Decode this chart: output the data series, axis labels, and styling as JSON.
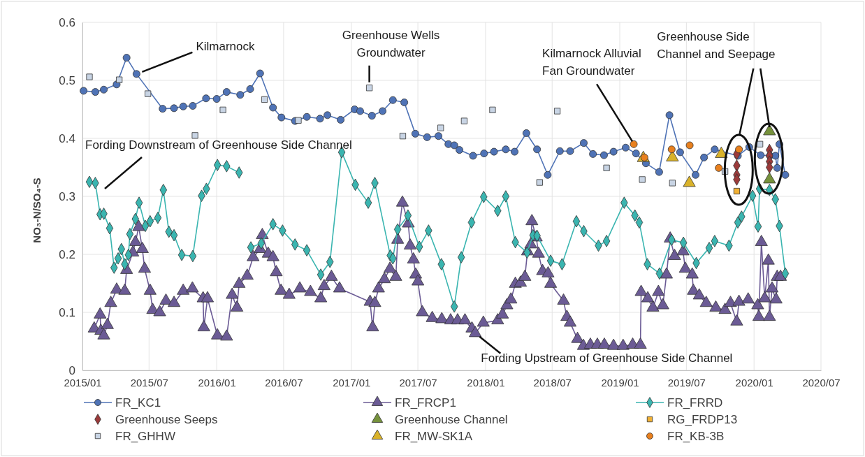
{
  "chart_data": {
    "type": "line",
    "ylabel": "NO₃-N/SO₄-S",
    "xlim": [
      "2015-01-01",
      "2020-07-01"
    ],
    "xticks": [
      {
        "value": "2015-01-01",
        "label": "2015/01"
      },
      {
        "value": "2015-07-01",
        "label": "2015/07"
      },
      {
        "value": "2016-01-01",
        "label": "2016/01"
      },
      {
        "value": "2016-07-01",
        "label": "2016/07"
      },
      {
        "value": "2017-01-01",
        "label": "2017/01"
      },
      {
        "value": "2017-07-01",
        "label": "2017/07"
      },
      {
        "value": "2018-01-01",
        "label": "2018/01"
      },
      {
        "value": "2018-07-01",
        "label": "2018/07"
      },
      {
        "value": "2019-01-01",
        "label": "2019/01"
      },
      {
        "value": "2019-07-01",
        "label": "2019/07"
      },
      {
        "value": "2020-01-01",
        "label": "2020/01"
      },
      {
        "value": "2020-07-01",
        "label": "2020/07"
      }
    ],
    "ylim": [
      0,
      0.6
    ],
    "yticks": [
      0,
      0.1,
      0.2,
      0.3,
      0.4,
      0.5,
      0.6
    ],
    "grid": true,
    "legend": "bottom",
    "annotations": [
      {
        "text": "Kilmarnock",
        "x": "2015-05-28",
        "y": 0.511
      },
      {
        "text": "Greenhouse Wells\nGroundwater",
        "x": "2017-02-19",
        "y": 0.487
      },
      {
        "text": "Kilmarnock Alluvial\nFan Groundwater",
        "x": "2019-02-08",
        "y": 0.39
      },
      {
        "text": "Greenhouse Side\nChannel and Seepage",
        "x": "2020-02-12",
        "y": 0.412
      },
      "Fording Downstream of Greenhouse Side Channel",
      {
        "text": "Fording Upstream of Greenhouse Side Channel",
        "x": "2017-12-10",
        "y": 0.063
      }
    ],
    "series": [
      {
        "name": "FR_KC1",
        "marker": "circle",
        "color": "#4f73b6",
        "x": [
          "2015-01-04",
          "2015-02-05",
          "2015-02-28",
          "2015-04-04",
          "2015-05-01",
          "2015-05-28",
          "2015-08-07",
          "2015-09-07",
          "2015-10-02",
          "2015-10-28",
          "2015-12-03",
          "2016-01-01",
          "2016-01-28",
          "2016-03-05",
          "2016-04-01",
          "2016-04-28",
          "2016-06-02",
          "2016-06-25",
          "2016-08-01",
          "2016-09-02",
          "2016-10-08",
          "2016-10-28",
          "2016-12-03",
          "2017-01-10",
          "2017-01-25",
          "2017-02-26",
          "2017-03-27",
          "2017-04-24",
          "2017-05-25",
          "2017-06-24",
          "2017-07-26",
          "2017-08-26",
          "2017-09-22",
          "2017-10-08",
          "2017-10-22",
          "2017-11-28",
          "2017-12-28",
          "2018-01-24",
          "2018-02-25",
          "2018-03-21",
          "2018-04-22",
          "2018-05-21",
          "2018-06-19",
          "2018-07-22",
          "2018-08-19",
          "2018-09-25",
          "2018-10-20",
          "2018-11-19",
          "2018-12-15",
          "2019-01-17",
          "2019-02-14",
          "2019-03-13",
          "2019-04-18",
          "2019-05-16",
          "2019-06-14",
          "2019-07-26",
          "2019-08-18",
          "2019-09-16",
          "2019-11-18",
          "2019-12-19",
          "2020-01-19",
          "2020-02-13",
          "2020-02-28",
          "2020-03-04",
          "2020-03-10",
          "2020-03-26"
        ],
        "values": [
          0.482,
          0.48,
          0.484,
          0.493,
          0.539,
          0.511,
          0.451,
          0.452,
          0.455,
          0.456,
          0.469,
          0.468,
          0.48,
          0.475,
          0.485,
          0.512,
          0.453,
          0.436,
          0.43,
          0.437,
          0.434,
          0.44,
          0.432,
          0.45,
          0.447,
          0.439,
          0.447,
          0.466,
          0.462,
          0.408,
          0.402,
          0.404,
          0.39,
          0.388,
          0.38,
          0.37,
          0.374,
          0.377,
          0.381,
          0.377,
          0.409,
          0.381,
          0.337,
          0.378,
          0.378,
          0.392,
          0.373,
          0.371,
          0.377,
          0.384,
          0.374,
          0.357,
          0.342,
          0.44,
          0.376,
          0.337,
          0.367,
          0.381,
          0.37,
          0.385,
          0.371,
          0.37,
          0.37,
          0.349,
          0.39,
          0.337
        ]
      },
      {
        "name": "FR_FRCP1",
        "marker": "triangle",
        "color": "#6b5b95",
        "x": [
          "2015-02-02",
          "2015-02-18",
          "2015-02-20",
          "2015-02-28",
          "2015-03-10",
          "2015-03-19",
          "2015-04-04",
          "2015-04-26",
          "2015-05-01",
          "2015-05-18",
          "2015-05-25",
          "2015-06-03",
          "2015-06-13",
          "2015-06-19",
          "2015-07-04",
          "2015-07-11",
          "2015-07-30",
          "2015-08-16",
          "2015-09-07",
          "2015-10-02",
          "2015-10-27",
          "2015-11-25",
          "2015-11-27",
          "2015-12-07",
          "2016-01-03",
          "2016-01-28",
          "2016-02-12",
          "2016-02-25",
          "2016-03-02",
          "2016-03-24",
          "2016-04-09",
          "2016-04-28",
          "2016-05-04",
          "2016-05-20",
          "2016-06-02",
          "2016-06-11",
          "2016-06-24",
          "2016-07-16",
          "2016-08-14",
          "2016-09-12",
          "2016-10-10",
          "2016-10-19",
          "2016-11-08",
          "2016-11-30",
          "2017-02-21",
          "2017-02-28",
          "2017-03-06",
          "2017-03-16",
          "2017-04-01",
          "2017-04-16",
          "2017-05-02",
          "2017-05-07",
          "2017-05-20",
          "2017-06-05",
          "2017-06-10",
          "2017-06-19",
          "2017-06-25",
          "2017-07-01",
          "2017-07-13",
          "2017-08-09",
          "2017-09-04",
          "2017-09-28",
          "2017-10-17",
          "2017-11-06",
          "2017-11-25",
          "2017-12-04",
          "2017-12-26",
          "2018-02-03",
          "2018-02-16",
          "2018-02-28",
          "2018-03-11",
          "2018-03-23",
          "2018-04-06",
          "2018-04-18",
          "2018-04-25",
          "2018-05-04",
          "2018-05-07",
          "2018-05-19",
          "2018-05-25",
          "2018-06-05",
          "2018-06-20",
          "2018-06-27",
          "2018-08-01",
          "2018-08-10",
          "2018-08-19",
          "2018-09-08",
          "2018-09-24",
          "2018-10-13",
          "2018-11-01",
          "2018-11-20",
          "2018-12-15",
          "2019-01-10",
          "2019-02-05",
          "2019-02-26",
          "2019-02-28",
          "2019-03-18",
          "2019-04-01",
          "2019-04-16",
          "2019-04-28",
          "2019-05-08",
          "2019-05-18",
          "2019-05-30",
          "2019-06-22",
          "2019-06-28",
          "2019-07-17",
          "2019-07-20",
          "2019-08-05",
          "2019-08-24",
          "2019-09-19",
          "2019-10-14",
          "2019-10-29",
          "2019-11-15",
          "2019-11-21",
          "2019-12-16",
          "2020-01-11",
          "2020-01-14",
          "2020-01-21",
          "2020-01-30",
          "2020-02-09",
          "2020-02-12",
          "2020-02-19",
          "2020-03-01",
          "2020-03-04",
          "2020-03-13"
        ],
        "values": [
          0.072,
          0.096,
          0.068,
          0.06,
          0.078,
          0.116,
          0.139,
          0.137,
          0.173,
          0.203,
          0.221,
          0.247,
          0.209,
          0.175,
          0.137,
          0.104,
          0.1,
          0.12,
          0.116,
          0.137,
          0.141,
          0.124,
          0.074,
          0.124,
          0.06,
          0.058,
          0.13,
          0.108,
          0.149,
          0.163,
          0.195,
          0.209,
          0.233,
          0.201,
          0.195,
          0.169,
          0.137,
          0.13,
          0.141,
          0.135,
          0.124,
          0.145,
          0.161,
          0.141,
          0.118,
          0.074,
          0.116,
          0.141,
          0.157,
          0.175,
          0.161,
          0.225,
          0.289,
          0.253,
          0.215,
          0.191,
          0.165,
          0.153,
          0.1,
          0.09,
          0.088,
          0.086,
          0.086,
          0.086,
          0.072,
          0.064,
          0.082,
          0.086,
          0.096,
          0.112,
          0.122,
          0.149,
          0.151,
          0.161,
          0.205,
          0.217,
          0.257,
          0.229,
          0.201,
          0.171,
          0.167,
          0.149,
          0.12,
          0.092,
          0.082,
          0.054,
          0.042,
          0.044,
          0.044,
          0.044,
          0.042,
          0.042,
          0.044,
          0.044,
          0.135,
          0.124,
          0.108,
          0.135,
          0.112,
          0.165,
          0.227,
          0.197,
          0.205,
          0.175,
          0.165,
          0.137,
          0.129,
          0.116,
          0.108,
          0.104,
          0.116,
          0.084,
          0.118,
          0.122,
          0.112,
          0.092,
          0.221,
          0.124,
          0.189,
          0.092,
          0.141,
          0.122,
          0.161,
          0.161
        ]
      },
      {
        "name": "FR_FRRD",
        "marker": "diamond",
        "color": "#3ab5b0",
        "x": [
          "2015-01-20",
          "2015-02-05",
          "2015-02-18",
          "2015-02-28",
          "2015-03-16",
          "2015-03-28",
          "2015-04-08",
          "2015-04-17",
          "2015-04-26",
          "2015-05-06",
          "2015-05-10",
          "2015-05-25",
          "2015-06-04",
          "2015-06-21",
          "2015-07-04",
          "2015-07-25",
          "2015-08-09",
          "2015-08-24",
          "2015-09-07",
          "2015-09-28",
          "2015-10-28",
          "2015-11-21",
          "2015-12-04",
          "2016-01-03",
          "2016-01-28",
          "2016-03-02",
          "2016-03-18",
          "2016-04-03",
          "2016-05-01",
          "2016-06-02",
          "2016-06-28",
          "2016-08-01",
          "2016-09-02",
          "2016-10-10",
          "2016-11-04",
          "2016-12-06",
          "2017-01-12",
          "2017-02-16",
          "2017-03-06",
          "2017-04-17",
          "2017-04-24",
          "2017-05-07",
          "2017-06-04",
          "2017-07-05",
          "2017-07-30",
          "2017-09-03",
          "2017-10-08",
          "2017-10-27",
          "2017-11-24",
          "2017-12-27",
          "2018-02-03",
          "2018-02-25",
          "2018-03-23",
          "2018-04-24",
          "2018-05-10",
          "2018-05-21",
          "2018-06-27",
          "2018-07-28",
          "2018-09-05",
          "2018-09-25",
          "2018-11-04",
          "2018-11-26",
          "2019-01-13",
          "2019-02-11",
          "2019-02-23",
          "2019-03-17",
          "2019-04-19",
          "2019-05-22",
          "2019-06-23",
          "2019-07-28",
          "2019-09-01",
          "2019-09-16",
          "2019-10-25",
          "2019-11-18",
          "2019-11-28",
          "2019-12-28",
          "2020-01-12",
          "2020-01-16",
          "2020-02-12",
          "2020-02-28",
          "2020-03-10",
          "2020-03-26"
        ],
        "values": [
          0.325,
          0.323,
          0.269,
          0.27,
          0.245,
          0.177,
          0.193,
          0.209,
          0.183,
          0.199,
          0.235,
          0.261,
          0.289,
          0.249,
          0.257,
          0.263,
          0.311,
          0.239,
          0.233,
          0.199,
          0.197,
          0.301,
          0.313,
          0.354,
          0.352,
          0.341,
          null,
          0.212,
          0.219,
          0.252,
          0.241,
          0.217,
          0.207,
          0.165,
          0.187,
          0.376,
          0.32,
          0.289,
          0.323,
          0.198,
          0.193,
          0.243,
          0.267,
          0.213,
          0.241,
          0.183,
          0.11,
          0.195,
          0.255,
          0.299,
          0.275,
          0.3,
          0.221,
          0.203,
          0.233,
          0.232,
          0.189,
          0.183,
          0.257,
          0.24,
          0.215,
          0.223,
          0.289,
          0.267,
          0.255,
          0.183,
          0.167,
          0.225,
          0.22,
          0.185,
          0.211,
          0.223,
          0.215,
          0.255,
          0.265,
          0.301,
          0.248,
          0.313,
          0.311,
          0.295,
          0.249,
          0.167
        ]
      },
      {
        "name": "Greenhouse Seeps",
        "type": "scatter",
        "marker": "diamond",
        "color": "#9b3a3a",
        "x": [
          "2019-11-15",
          "2019-11-15",
          "2019-11-15",
          "2019-11-15",
          "2020-02-12",
          "2020-02-12",
          "2020-02-12",
          "2020-02-12"
        ],
        "values": [
          0.373,
          0.353,
          0.337,
          0.329,
          0.38,
          0.37,
          0.36,
          0.35
        ]
      },
      {
        "name": "Greenhouse Channel",
        "type": "scatter",
        "marker": "triangle",
        "color": "#76923c",
        "x": [
          "2020-02-12",
          "2020-02-12"
        ],
        "values": [
          0.412,
          0.329
        ]
      },
      {
        "name": "RG_FRDP13",
        "type": "scatter",
        "marker": "square",
        "color": "#f2b134",
        "x": [
          "2019-11-15"
        ],
        "values": [
          0.309
        ]
      },
      {
        "name": "FR_GHHW",
        "type": "scatter",
        "marker": "square",
        "color": "#c8d4e4",
        "x": [
          "2015-01-20",
          "2015-04-11",
          "2015-06-28",
          "2015-11-03",
          "2016-01-18",
          "2016-05-10",
          "2016-08-10",
          "2017-02-19",
          "2017-05-21",
          "2017-09-01",
          "2017-11-04",
          "2018-01-20",
          "2018-05-28",
          "2018-07-15",
          "2018-11-26",
          "2019-03-03",
          "2019-05-24",
          "2019-10-14",
          "2020-01-17"
        ],
        "values": [
          0.506,
          0.501,
          0.477,
          0.405,
          0.449,
          0.467,
          0.431,
          0.487,
          0.404,
          0.418,
          0.43,
          0.449,
          0.324,
          0.447,
          0.349,
          0.329,
          0.323,
          0.343,
          0.39
        ]
      },
      {
        "name": "FR_MW-SK1A",
        "type": "scatter",
        "marker": "triangle",
        "color": "#d9b22a",
        "x": [
          "2019-03-06",
          "2019-05-24",
          "2019-07-09",
          "2019-10-04"
        ],
        "values": [
          0.366,
          0.367,
          0.323,
          0.373
        ]
      },
      {
        "name": "FR_KB-3B",
        "type": "scatter",
        "marker": "circle",
        "color": "#e8801e",
        "x": [
          "2019-02-08",
          "2019-03-09",
          "2019-05-22",
          "2019-07-10",
          "2019-09-27",
          "2019-11-21"
        ],
        "values": [
          0.39,
          0.367,
          0.381,
          0.388,
          0.349,
          0.381
        ]
      }
    ]
  }
}
